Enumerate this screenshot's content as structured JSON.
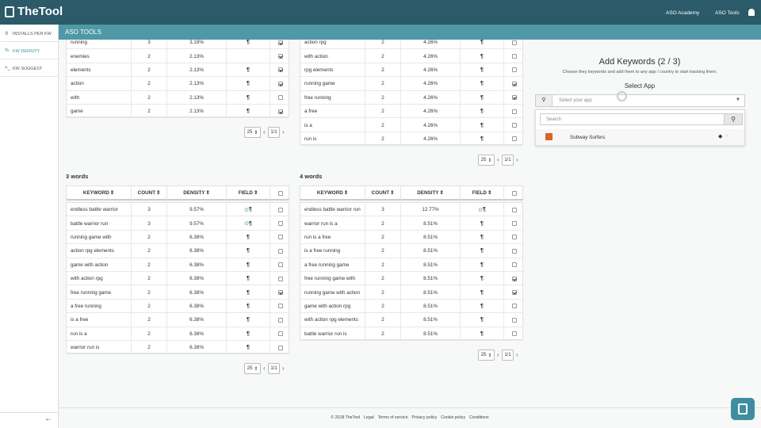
{
  "nav": {
    "logo": "TheTool",
    "links": [
      "ASO Academy",
      "ASO Tools"
    ]
  },
  "subbar": {
    "title": "ASO TOOLS"
  },
  "sidebar": {
    "items": [
      "INSTALLS PER KW",
      "KW DENSITY",
      "KW SUGGEST"
    ],
    "active": 1
  },
  "headers": [
    "KEYWORD",
    "COUNT",
    "DENSITY",
    "FIELD"
  ],
  "tables": [
    {
      "page_size": 25,
      "pages": "1/1",
      "rows": [
        {
          "keyword": "running",
          "count": 3,
          "density": "3.19%",
          "field": true,
          "checked": true
        },
        {
          "keyword": "enemies",
          "count": 2,
          "density": "2.13%",
          "field": false,
          "checked": true
        },
        {
          "keyword": "elements",
          "count": 2,
          "density": "2.13%",
          "field": true,
          "checked": true
        },
        {
          "keyword": "action",
          "count": 2,
          "density": "2.13%",
          "field": true,
          "checked": true
        },
        {
          "keyword": "with",
          "count": 2,
          "density": "2.13%",
          "field": true,
          "checked": false
        },
        {
          "keyword": "game",
          "count": 2,
          "density": "2.13%",
          "field": true,
          "checked": true
        }
      ]
    },
    {
      "page_size": 25,
      "pages": "1/1",
      "rows": [
        {
          "keyword": "action rpg",
          "count": 2,
          "density": "4.26%",
          "field": true,
          "checked": false
        },
        {
          "keyword": "with action",
          "count": 2,
          "density": "4.26%",
          "field": true,
          "checked": false
        },
        {
          "keyword": "rpg elements",
          "count": 2,
          "density": "4.26%",
          "field": true,
          "checked": false
        },
        {
          "keyword": "running game",
          "count": 2,
          "density": "4.26%",
          "field": true,
          "checked": true
        },
        {
          "keyword": "free running",
          "count": 2,
          "density": "4.26%",
          "field": true,
          "checked": true
        },
        {
          "keyword": "a free",
          "count": 2,
          "density": "4.26%",
          "field": true,
          "checked": false
        },
        {
          "keyword": "is a",
          "count": 2,
          "density": "4.26%",
          "field": true,
          "checked": false
        },
        {
          "keyword": "run is",
          "count": 2,
          "density": "4.26%",
          "field": true,
          "checked": false
        }
      ]
    },
    {
      "title": "3 words",
      "page_size": 25,
      "pages": "1/1",
      "rows": [
        {
          "keyword": "endless battle warrior",
          "count": 3,
          "density": "9.57%",
          "field": true,
          "title_icon": true,
          "checked": false
        },
        {
          "keyword": "battle warrior run",
          "count": 3,
          "density": "9.57%",
          "field": true,
          "title_icon": true,
          "checked": false
        },
        {
          "keyword": "running game with",
          "count": 2,
          "density": "6.38%",
          "field": true,
          "checked": false
        },
        {
          "keyword": "action rpg elements",
          "count": 2,
          "density": "6.38%",
          "field": true,
          "checked": false
        },
        {
          "keyword": "game with action",
          "count": 2,
          "density": "6.38%",
          "field": true,
          "checked": false
        },
        {
          "keyword": "with action rpg",
          "count": 2,
          "density": "6.38%",
          "field": true,
          "checked": false
        },
        {
          "keyword": "free running game",
          "count": 2,
          "density": "6.38%",
          "field": true,
          "checked": true
        },
        {
          "keyword": "a free running",
          "count": 2,
          "density": "6.38%",
          "field": true,
          "checked": false
        },
        {
          "keyword": "is a free",
          "count": 2,
          "density": "6.38%",
          "field": true,
          "checked": false
        },
        {
          "keyword": "run is a",
          "count": 2,
          "density": "6.38%",
          "field": true,
          "checked": false
        },
        {
          "keyword": "warrior run is",
          "count": 2,
          "density": "6.38%",
          "field": true,
          "checked": false
        }
      ]
    },
    {
      "title": "4 words",
      "page_size": 25,
      "pages": "1/1",
      "rows": [
        {
          "keyword": "endless battle warrior run",
          "count": 3,
          "density": "12.77%",
          "field": true,
          "title_icon": true,
          "checked": false
        },
        {
          "keyword": "warrior run is a",
          "count": 2,
          "density": "8.51%",
          "field": true,
          "checked": false
        },
        {
          "keyword": "run is a free",
          "count": 2,
          "density": "8.51%",
          "field": true,
          "checked": false
        },
        {
          "keyword": "is a free running",
          "count": 2,
          "density": "8.51%",
          "field": true,
          "checked": false
        },
        {
          "keyword": "a free running game",
          "count": 2,
          "density": "8.51%",
          "field": true,
          "checked": false
        },
        {
          "keyword": "free running game with",
          "count": 2,
          "density": "8.51%",
          "field": true,
          "checked": true
        },
        {
          "keyword": "running game with action",
          "count": 2,
          "density": "8.51%",
          "field": true,
          "checked": true
        },
        {
          "keyword": "game with action rpg",
          "count": 2,
          "density": "8.51%",
          "field": true,
          "checked": false
        },
        {
          "keyword": "with action rpg elements",
          "count": 2,
          "density": "8.51%",
          "field": true,
          "checked": false
        },
        {
          "keyword": "battle warrior run is",
          "count": 2,
          "density": "8.51%",
          "field": true,
          "checked": false
        }
      ]
    }
  ],
  "panel": {
    "title": "Add Keywords (2 / 3)",
    "subtitle": "Choose they keywords and add them to any app / country to start tracking them.",
    "select_label": "Select App",
    "select_placeholder": "Select your app",
    "search_placeholder": "Search",
    "apps": [
      "Subway Surfers"
    ]
  },
  "footer": {
    "links": [
      "© 2018 TheTool",
      "Legal",
      "Terms of service",
      "Privacy policy",
      "Cookie policy",
      "Conditions"
    ]
  }
}
